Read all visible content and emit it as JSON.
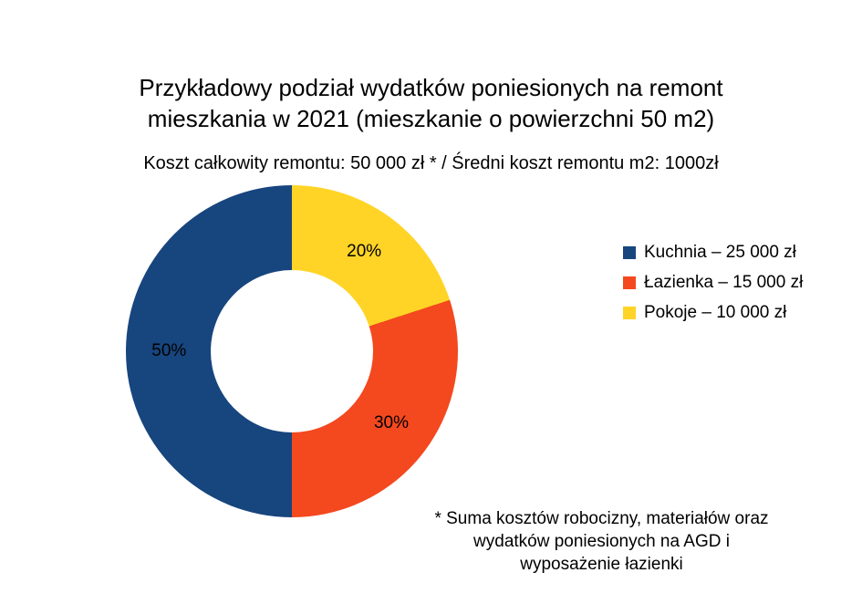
{
  "title": {
    "line1": "Przykładowy podział wydatków poniesionych na remont",
    "line2": "mieszkania w 2021 (mieszkanie o powierzchni 50 m2)"
  },
  "subtitle": "Koszt całkowity remontu: 50 000 zł * / Średni koszt remontu m2: 1000zł",
  "footnote": {
    "line1": "* Suma kosztów robocizny, materiałów oraz",
    "line2": "wydatków poniesionych na AGD i",
    "line3": "wyposażenie łazienki"
  },
  "chart_data": {
    "type": "pie",
    "subtype": "donut",
    "title": "Przykładowy podział wydatków poniesionych na remont mieszkania w 2021 (mieszkanie o powierzchni 50 m2)",
    "subtitle": "Koszt całkowity remontu: 50 000 zł * / Średni koszt remontu m2: 1000zł",
    "total_value": 50000,
    "unit": "zł",
    "legend_position": "right",
    "start_angle_deg": 0,
    "draw_direction": "counterclockwise",
    "hole_ratio": 0.49,
    "series": [
      {
        "name": "Kuchnia",
        "value": 25000,
        "pct": 50,
        "pct_label": "50%",
        "legend_label": "Kuchnia – 25 000 zł",
        "color": "#17457e"
      },
      {
        "name": "Łazienka",
        "value": 15000,
        "pct": 30,
        "pct_label": "30%",
        "legend_label": "Łazienka – 15 000 zł",
        "color": "#f4481f"
      },
      {
        "name": "Pokoje",
        "value": 10000,
        "pct": 20,
        "pct_label": "20%",
        "legend_label": "Pokoje – 10 000 zł",
        "color": "#ffd426"
      }
    ]
  }
}
